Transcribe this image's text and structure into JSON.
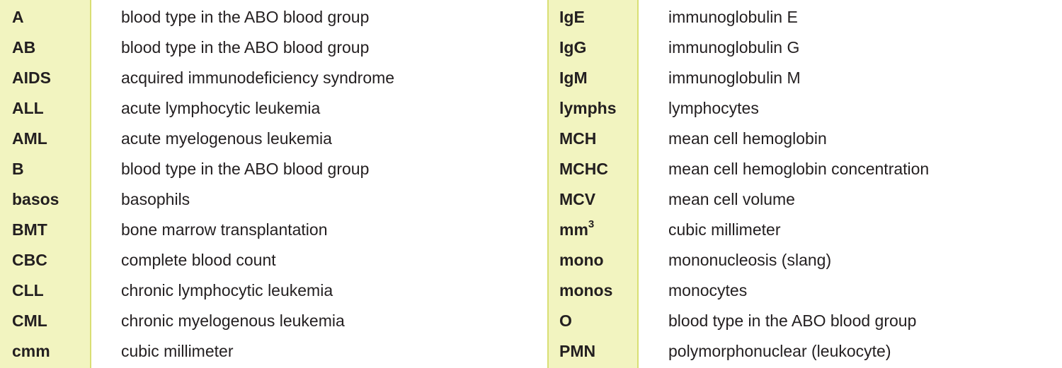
{
  "left_table": {
    "rows": [
      {
        "abbr": "A",
        "meaning": "blood type in the ABO blood group"
      },
      {
        "abbr": "AB",
        "meaning": "blood type in the ABO blood group"
      },
      {
        "abbr": "AIDS",
        "meaning": "acquired immunodeficiency syndrome"
      },
      {
        "abbr": "ALL",
        "meaning": "acute lymphocytic leukemia"
      },
      {
        "abbr": "AML",
        "meaning": "acute myelogenous leukemia"
      },
      {
        "abbr": "B",
        "meaning": "blood type in the ABO blood group"
      },
      {
        "abbr": "basos",
        "meaning": "basophils"
      },
      {
        "abbr": "BMT",
        "meaning": "bone marrow transplantation"
      },
      {
        "abbr": "CBC",
        "meaning": "complete blood count"
      },
      {
        "abbr": "CLL",
        "meaning": "chronic lymphocytic leukemia"
      },
      {
        "abbr": "CML",
        "meaning": "chronic myelogenous leukemia"
      },
      {
        "abbr": "cmm",
        "meaning": "cubic millimeter"
      }
    ]
  },
  "right_table": {
    "rows": [
      {
        "abbr": "IgE",
        "meaning": "immunoglobulin E"
      },
      {
        "abbr": "IgG",
        "meaning": "immunoglobulin G"
      },
      {
        "abbr": "IgM",
        "meaning": "immunoglobulin M"
      },
      {
        "abbr": "lymphs",
        "meaning": "lymphocytes"
      },
      {
        "abbr": "MCH",
        "meaning": "mean cell hemoglobin"
      },
      {
        "abbr": "MCHC",
        "meaning": "mean cell hemoglobin concentration"
      },
      {
        "abbr": "MCV",
        "meaning": "mean cell volume"
      },
      {
        "abbr": "mm",
        "abbr_sup": "3",
        "meaning": "cubic millimeter"
      },
      {
        "abbr": "mono",
        "meaning": "mononucleosis (slang)"
      },
      {
        "abbr": "monos",
        "meaning": "monocytes"
      },
      {
        "abbr": "O",
        "meaning": "blood type in the ABO blood group"
      },
      {
        "abbr": "PMN",
        "meaning": "polymorphonuclear (leukocyte)"
      }
    ]
  },
  "colors": {
    "abbr_column_fill": "#f2f4c0",
    "abbr_column_border": "#d9df74",
    "text": "#231f20"
  }
}
